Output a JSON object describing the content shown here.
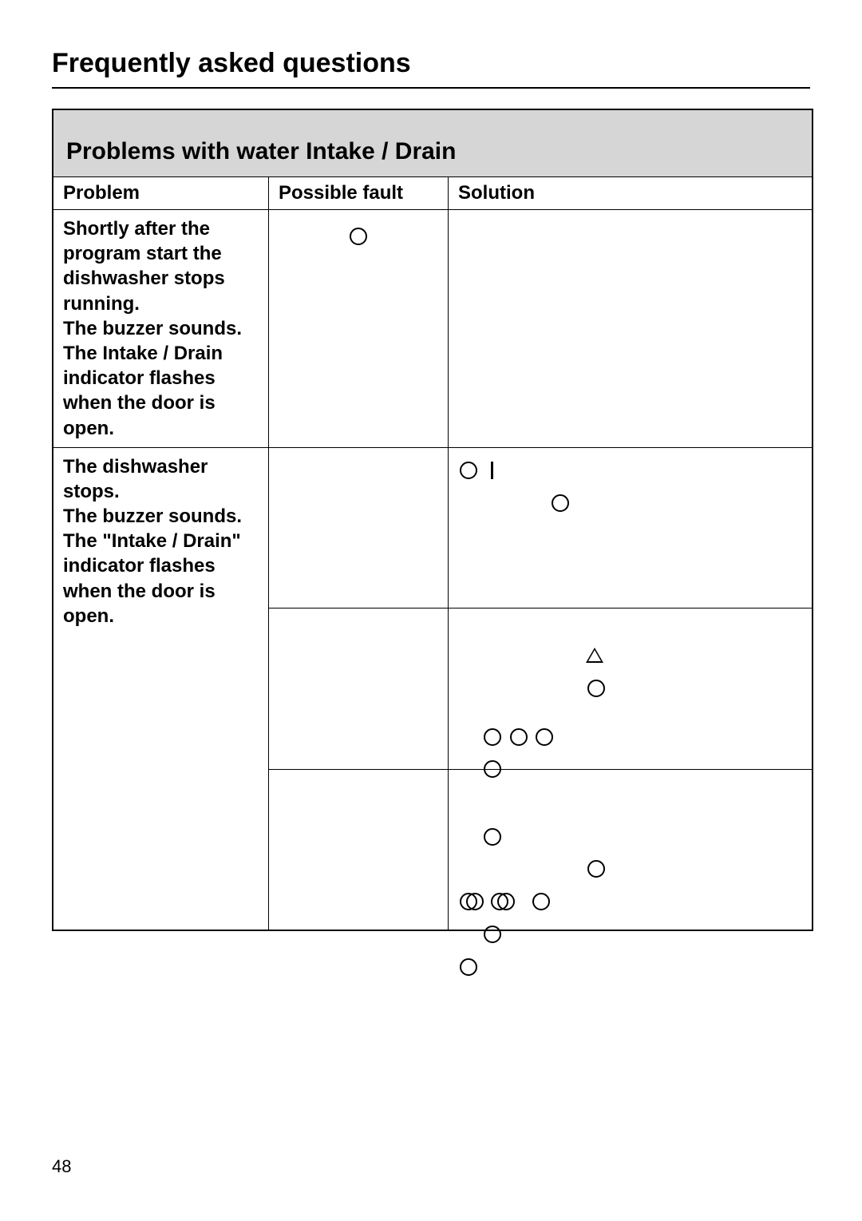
{
  "page_title": "Frequently asked questions",
  "section_title": "Problems with  water Intake / Drain",
  "columns": {
    "problem": "Problem",
    "fault": "Possible fault",
    "solution": "Solution"
  },
  "rows": [
    {
      "problem": "Shortly after the program start the dishwasher stops running.\nThe buzzer sounds. The Intake / Drain indicator flashes when the door is open."
    },
    {
      "problem": "The dishwasher stops.\nThe buzzer sounds. The \"Intake / Drain\" indicator flashes when the door is open."
    }
  ],
  "page_number": "48"
}
